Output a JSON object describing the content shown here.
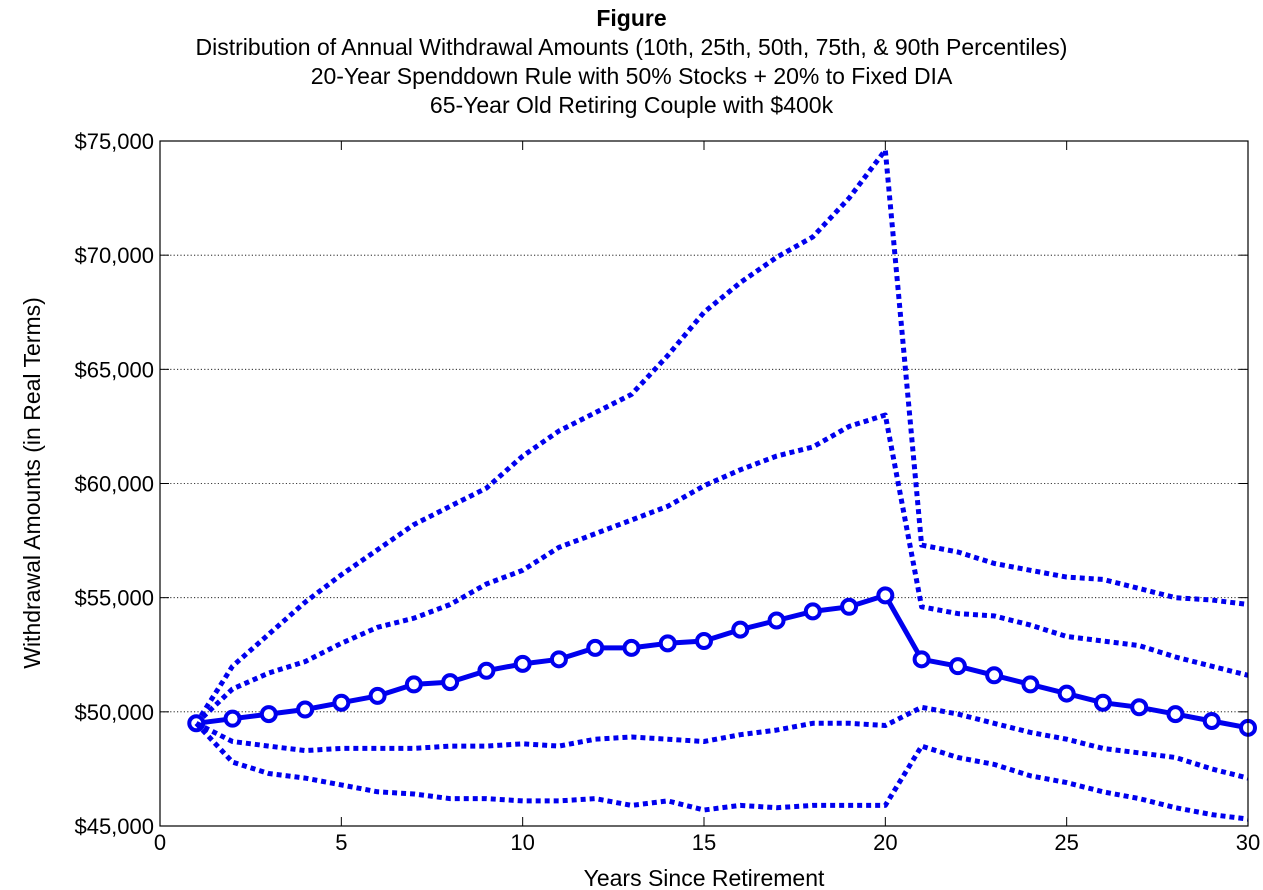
{
  "chart_data": {
    "type": "line",
    "title": "Figure",
    "subtitle_lines": [
      "Distribution of Annual Withdrawal Amounts (10th, 25th, 50th, 75th, & 90th Percentiles)",
      "20-Year Spenddown Rule with 50% Stocks + 20% to Fixed DIA",
      "65-Year Old Retiring Couple with $400k"
    ],
    "xlabel": "Years Since Retirement",
    "ylabel": "Withdrawal Amounts (in Real Terms)",
    "xlim": [
      0,
      30
    ],
    "ylim": [
      45000,
      75000
    ],
    "xticks": [
      0,
      5,
      10,
      15,
      20,
      25,
      30
    ],
    "xtick_labels": [
      "0",
      "5",
      "10",
      "15",
      "20",
      "25",
      "30"
    ],
    "yticks": [
      45000,
      50000,
      55000,
      60000,
      65000,
      70000,
      75000
    ],
    "ytick_labels": [
      "$45,000",
      "$50,000",
      "$55,000",
      "$60,000",
      "$65,000",
      "$70,000",
      "$75,000"
    ],
    "grid": "horizontal-dotted",
    "line_color": "#0000ee",
    "x": [
      1,
      2,
      3,
      4,
      5,
      6,
      7,
      8,
      9,
      10,
      11,
      12,
      13,
      14,
      15,
      16,
      17,
      18,
      19,
      20,
      21,
      22,
      23,
      24,
      25,
      26,
      27,
      28,
      29,
      30
    ],
    "series": [
      {
        "style": "dotted",
        "values": [
          49500,
          52000,
          53400,
          54800,
          56000,
          57100,
          58200,
          59000,
          59800,
          61200,
          62300,
          63100,
          63900,
          65600,
          67500,
          68800,
          69900,
          70800,
          72500,
          74600,
          57300,
          57000,
          56500,
          56200,
          55900,
          55800,
          55400,
          55000,
          54900,
          54700
        ]
      },
      {
        "style": "dotted",
        "values": [
          49500,
          51000,
          51700,
          52200,
          53000,
          53700,
          54100,
          54700,
          55600,
          56200,
          57200,
          57800,
          58400,
          59000,
          59900,
          60600,
          61200,
          61600,
          62500,
          63000,
          54600,
          54300,
          54200,
          53800,
          53300,
          53100,
          52900,
          52400,
          52000,
          51600
        ]
      },
      {
        "style": "solid-markers",
        "values": [
          49500,
          49700,
          49900,
          50100,
          50400,
          50700,
          51200,
          51300,
          51800,
          52100,
          52300,
          52800,
          52800,
          53000,
          53100,
          53600,
          54000,
          54400,
          54600,
          55100,
          52300,
          52000,
          51600,
          51200,
          50800,
          50400,
          50200,
          49900,
          49600,
          49300
        ]
      },
      {
        "style": "dotted",
        "values": [
          49500,
          48700,
          48500,
          48300,
          48400,
          48400,
          48400,
          48500,
          48500,
          48600,
          48500,
          48800,
          48900,
          48800,
          48700,
          49000,
          49200,
          49500,
          49500,
          49400,
          50200,
          49900,
          49500,
          49100,
          48800,
          48400,
          48200,
          48000,
          47500,
          47100
        ]
      },
      {
        "style": "dotted",
        "values": [
          49500,
          47800,
          47300,
          47100,
          46800,
          46500,
          46400,
          46200,
          46200,
          46100,
          46100,
          46200,
          45900,
          46100,
          45700,
          45900,
          45800,
          45900,
          45900,
          45900,
          48500,
          48000,
          47700,
          47200,
          46900,
          46500,
          46200,
          45800,
          45500,
          45300
        ]
      }
    ]
  }
}
